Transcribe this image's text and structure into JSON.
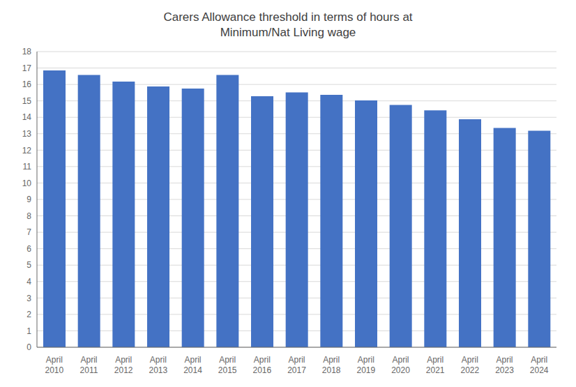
{
  "chart_data": {
    "type": "bar",
    "title": "Carers Allowance threshold in terms of hours at\nMinimum/Nat Living wage",
    "categories": [
      "April\n2010",
      "April\n2011",
      "April\n2012",
      "April\n2013",
      "April\n2014",
      "April\n2015",
      "April\n2016",
      "April\n2017",
      "April\n2018",
      "April\n2019",
      "April\n2020",
      "April\n2021",
      "April\n2022",
      "April\n2023",
      "April\n2024"
    ],
    "values": [
      16.85,
      16.58,
      16.17,
      15.88,
      15.75,
      16.58,
      15.28,
      15.52,
      15.37,
      15.03,
      14.75,
      14.42,
      13.88,
      13.35,
      13.18
    ],
    "color": "#4472c4",
    "ylim": [
      0,
      18
    ],
    "yticks": [
      0,
      1,
      2,
      3,
      4,
      5,
      6,
      7,
      8,
      9,
      10,
      11,
      12,
      13,
      14,
      15,
      16,
      17,
      18
    ],
    "grid": true
  }
}
